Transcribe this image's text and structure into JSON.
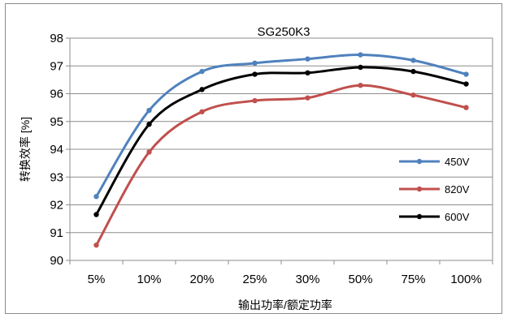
{
  "chart_data": {
    "type": "line",
    "title": "SG250K3",
    "xlabel": "输出功率/额定功率",
    "ylabel": "转换效率 [%]",
    "categories": [
      "5%",
      "10%",
      "20%",
      "25%",
      "30%",
      "50%",
      "75%",
      "100%"
    ],
    "ylim": [
      90,
      98
    ],
    "yticks": [
      "90",
      "91",
      "92",
      "93",
      "94",
      "95",
      "96",
      "97",
      "98"
    ],
    "grid": true,
    "legend_position": "right",
    "series": [
      {
        "name": "450V",
        "color": "#4f81bd",
        "values": [
          92.3,
          95.4,
          96.8,
          97.1,
          97.25,
          97.4,
          97.2,
          96.7
        ]
      },
      {
        "name": "820V",
        "color": "#c0504d",
        "values": [
          90.55,
          93.9,
          95.35,
          95.75,
          95.85,
          96.3,
          95.95,
          95.5
        ]
      },
      {
        "name": "600V",
        "color": "#000000",
        "values": [
          91.65,
          94.9,
          96.15,
          96.7,
          96.75,
          96.95,
          96.8,
          96.35
        ]
      }
    ]
  }
}
